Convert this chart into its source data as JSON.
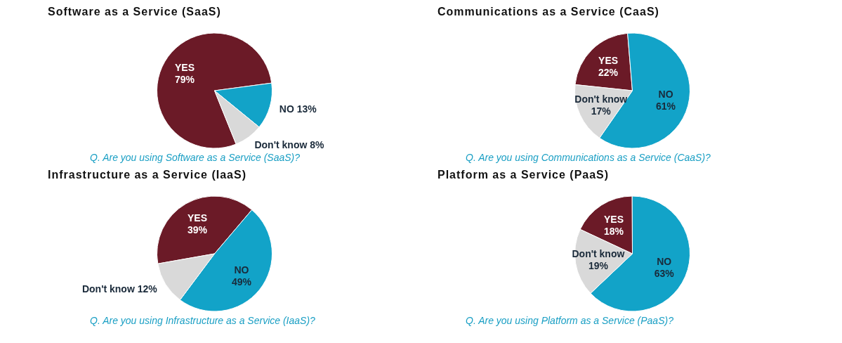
{
  "chart_data": [
    {
      "type": "pie",
      "title": "Software as a Service (SaaS)",
      "categories": [
        "YES",
        "NO",
        "Don't know"
      ],
      "values": [
        79,
        13,
        8
      ],
      "value_labels": [
        "79%",
        "13%",
        "8%"
      ],
      "colors": [
        "#6b1a27",
        "#12a3c8",
        "#d9d9d9"
      ],
      "legend": false,
      "annotations": [
        "Q. Are you using Software as a Service (SaaS)?"
      ]
    },
    {
      "type": "pie",
      "title": "Communications as a Service (CaaS)",
      "categories": [
        "YES",
        "NO",
        "Don't know"
      ],
      "values": [
        22,
        61,
        17
      ],
      "value_labels": [
        "22%",
        "61%",
        "17%"
      ],
      "colors": [
        "#6b1a27",
        "#12a3c8",
        "#d9d9d9"
      ],
      "legend": false,
      "annotations": [
        "Q. Are you using Communications as a Service (CaaS)?"
      ]
    },
    {
      "type": "pie",
      "title": "Infrastructure as a Service (IaaS)",
      "categories": [
        "YES",
        "NO",
        "Don't know"
      ],
      "values": [
        39,
        49,
        12
      ],
      "value_labels": [
        "39%",
        "49%",
        "12%"
      ],
      "colors": [
        "#6b1a27",
        "#12a3c8",
        "#d9d9d9"
      ],
      "legend": false,
      "annotations": [
        "Q. Are you using Infrastructure as a Service (IaaS)?"
      ]
    },
    {
      "type": "pie",
      "title": "Platform as a Service (PaaS)",
      "categories": [
        "YES",
        "NO",
        "Don't know"
      ],
      "values": [
        18,
        63,
        19
      ],
      "value_labels": [
        "18%",
        "63%",
        "19%"
      ],
      "colors": [
        "#6b1a27",
        "#12a3c8",
        "#d9d9d9"
      ],
      "legend": false,
      "annotations": [
        "Q. Are you using Platform as a Service (PaaS)?"
      ]
    }
  ]
}
